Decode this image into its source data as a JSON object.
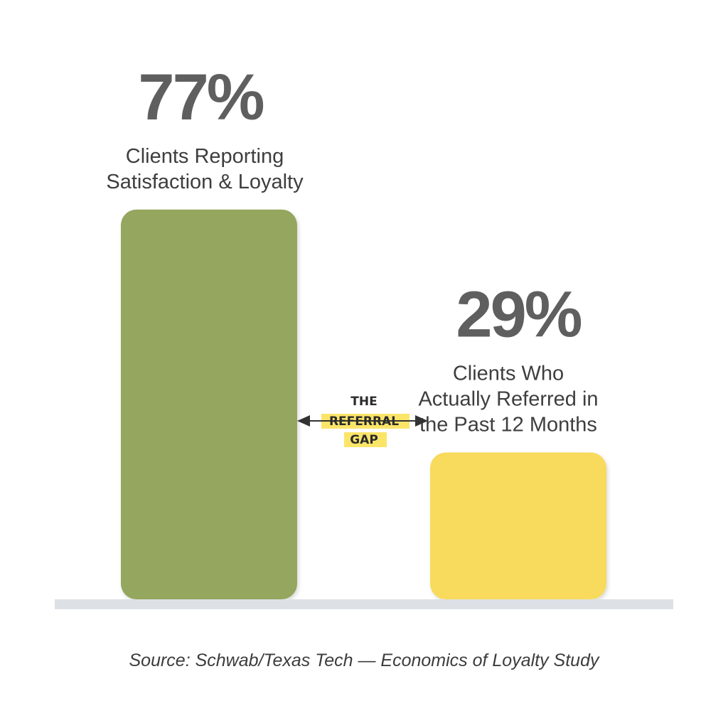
{
  "chart_data": {
    "type": "bar",
    "categories": [
      "Clients Reporting Satisfaction & Loyalty",
      "Clients Who Actually Referred in the Past 12 Months"
    ],
    "values": [
      77,
      29
    ],
    "value_labels": [
      "77%",
      "29%"
    ],
    "descriptions": [
      [
        "Clients Reporting",
        "Satisfaction & Loyalty"
      ],
      [
        "Clients Who",
        "Actually Referred in",
        "the Past 12 Months"
      ]
    ],
    "colors": [
      "#95a65e",
      "#f8da5c"
    ],
    "ylim": [
      0,
      100
    ],
    "grid": false,
    "annotation": {
      "lines": [
        "THE",
        "REFERRAL",
        "GAP"
      ],
      "highlight_color": "#fbe569"
    },
    "source": "Source: Schwab/Texas Tech — Economics of Loyalty Study"
  }
}
